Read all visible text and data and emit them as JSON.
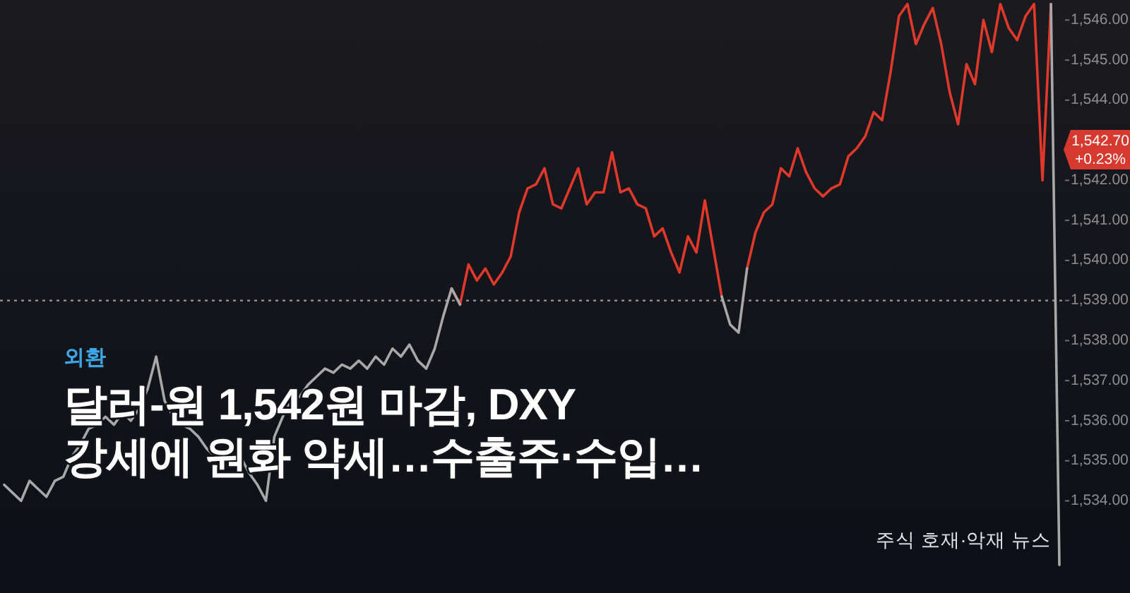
{
  "chart_data": {
    "type": "line",
    "title": "달러-원 1,542원 마감, DXY 강세에 원화 약세…수출주·수입…",
    "subtitle": "외환",
    "categories": [
      null,
      null,
      null,
      null,
      null,
      null,
      null,
      null,
      null,
      null,
      null,
      null,
      null,
      null,
      null,
      null,
      null,
      null,
      null,
      null,
      null,
      null,
      null,
      null,
      null,
      null,
      null,
      null,
      null,
      null,
      null,
      null,
      null,
      null,
      null,
      null,
      null,
      null,
      null,
      null,
      null,
      null,
      null,
      null,
      null,
      null,
      null,
      null,
      null,
      null,
      null,
      null,
      null,
      null,
      null,
      null,
      null,
      null,
      null,
      null,
      null,
      null,
      null,
      null,
      null,
      null,
      null,
      null,
      null,
      null,
      null,
      null,
      null,
      null,
      null,
      null,
      null,
      null,
      null,
      null,
      null,
      null,
      null,
      null,
      null,
      null,
      null,
      null,
      null,
      null,
      null,
      null,
      null,
      null,
      null,
      null,
      null,
      null,
      null,
      null,
      null,
      null,
      null,
      null,
      null,
      null,
      null,
      null,
      null,
      null,
      null,
      null,
      null,
      null,
      null,
      null,
      null,
      null,
      null,
      null,
      null,
      null,
      null,
      null,
      null,
      null
    ],
    "series": [
      {
        "color": "#e0392b",
        "values": [
          null,
          null,
          null,
          null,
          null,
          null,
          null,
          null,
          null,
          null,
          null,
          null,
          null,
          null,
          null,
          null,
          null,
          null,
          null,
          null,
          null,
          null,
          null,
          null,
          null,
          null,
          null,
          null,
          null,
          null,
          null,
          null,
          null,
          null,
          null,
          null,
          null,
          null,
          null,
          null,
          null,
          null,
          null,
          null,
          null,
          null,
          null,
          null,
          null,
          null,
          null,
          null,
          null,
          1539.3,
          1538.9,
          1539.9,
          1539.5,
          1539.8,
          1539.4,
          1539.7,
          1540.1,
          1541.2,
          1541.8,
          1541.9,
          1542.3,
          1541.4,
          1541.3,
          1541.8,
          1542.3,
          1541.4,
          1541.7,
          1541.7,
          1542.7,
          1541.7,
          1541.8,
          1541.4,
          1541.3,
          1540.6,
          1540.8,
          1540.2,
          1539.7,
          1540.6,
          1540.2,
          1541.5,
          1540.3,
          1539.1,
          null,
          null,
          1539.8,
          1540.7,
          1541.2,
          1541.4,
          1542.3,
          1542.1,
          1542.8,
          1542.2,
          1541.8,
          1541.6,
          1541.8,
          1541.9,
          1542.6,
          1542.8,
          1543.1,
          1543.7,
          1543.5,
          1544.7,
          1546.1,
          1546.4,
          1545.4,
          1545.9,
          1546.3,
          1545.4,
          1544.2,
          1543.4,
          1544.9,
          1544.4,
          1546.0,
          1545.2,
          1546.4,
          1545.8,
          1545.5,
          1546.1,
          1546.4,
          1542.0,
          1546.4,
          null
        ]
      },
      {
        "color": "#a8a8a8",
        "values": [
          1534.4,
          1534.2,
          1534.0,
          1534.5,
          1534.3,
          1534.1,
          1534.5,
          1534.6,
          1535.1,
          1535.4,
          1535.8,
          1535.9,
          1536.1,
          1535.9,
          1536.2,
          1536.0,
          1536.3,
          1536.8,
          1537.6,
          1536.5,
          1536.1,
          1535.9,
          1535.8,
          1535.6,
          1535.3,
          1535.1,
          1535.2,
          1534.9,
          1535.1,
          1534.7,
          1534.4,
          1534.0,
          1535.6,
          1536.1,
          1536.5,
          1536.6,
          1536.9,
          1537.1,
          1537.3,
          1537.2,
          1537.4,
          1537.3,
          1537.5,
          1537.3,
          1537.6,
          1537.4,
          1537.8,
          1537.6,
          1537.9,
          1537.5,
          1537.3,
          1537.8,
          1538.6,
          1539.3,
          1538.9,
          null,
          null,
          null,
          null,
          null,
          null,
          null,
          null,
          null,
          null,
          null,
          null,
          null,
          null,
          null,
          null,
          null,
          null,
          null,
          null,
          null,
          null,
          null,
          null,
          null,
          null,
          null,
          null,
          null,
          null,
          1539.1,
          1538.4,
          1538.2,
          1539.8,
          null,
          null,
          null,
          null,
          null,
          null,
          null,
          null,
          null,
          null,
          null,
          null,
          null,
          null,
          null,
          null,
          null,
          null,
          null,
          null,
          null,
          null,
          null,
          null,
          null,
          null,
          null,
          null,
          null,
          null,
          null,
          null,
          null,
          null,
          null,
          1546.4,
          1532.4
        ]
      }
    ],
    "ylim": [
      1531.7,
      1546.5
    ],
    "yticks": [
      {
        "value": 1534,
        "label": "1,534.00"
      },
      {
        "value": 1535,
        "label": "1,535.00"
      },
      {
        "value": 1536,
        "label": "1,536.00"
      },
      {
        "value": 1537,
        "label": "1,537.00"
      },
      {
        "value": 1538,
        "label": "1,538.00"
      },
      {
        "value": 1539,
        "label": "1,539.00"
      },
      {
        "value": 1540,
        "label": "1,540.00"
      },
      {
        "value": 1541,
        "label": "1,541.00"
      },
      {
        "value": 1542,
        "label": "1,542.00"
      },
      {
        "value": 1544,
        "label": "1,544.00"
      },
      {
        "value": 1545,
        "label": "1,545.00"
      },
      {
        "value": 1546,
        "label": "1,546.00"
      }
    ],
    "ref_lines": [
      {
        "axis": "y",
        "value": 1539,
        "color": "#8c8c8c",
        "line_style": "dotted"
      }
    ],
    "annotations": [
      "1,542.70\n+0.23%",
      "주식 호재·악재 뉴스"
    ],
    "tick_labels": "y"
  }
}
